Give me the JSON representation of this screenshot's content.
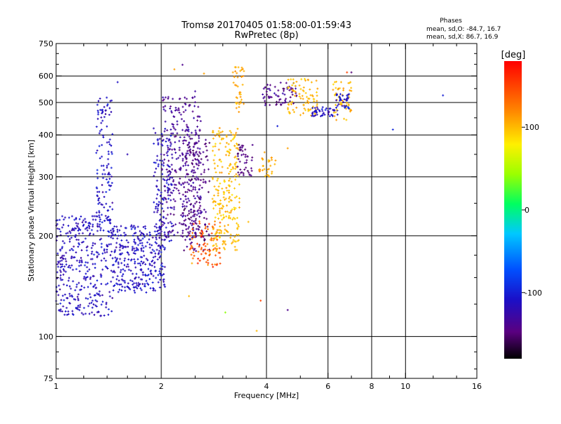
{
  "chart_data": {
    "type": "scatter",
    "title_line1": "Tromsø 20170405 01:58:00-01:59:43",
    "title_line2": "RwPretec (8p)",
    "stats": {
      "heading": "Phases",
      "line_o": "mean, sd,O: -84.7, 16.7",
      "line_x": "mean, sd,X:  86.7, 16.9"
    },
    "xlabel": "Frequency [MHz]",
    "ylabel": "Stationary phase Virtual Height [km]",
    "x_scale": "log",
    "y_scale": "log",
    "xlim": [
      1,
      16
    ],
    "ylim": [
      75,
      750
    ],
    "x_ticks": [
      1,
      2,
      4,
      6,
      8,
      10,
      16
    ],
    "x_tick_labels": [
      "1",
      "2",
      "4",
      "6",
      "8",
      "10",
      "16"
    ],
    "y_ticks": [
      75,
      100,
      200,
      300,
      400,
      500,
      600,
      750
    ],
    "y_tick_labels": [
      "75",
      "100",
      "200",
      "300",
      "400",
      "500",
      "600",
      "750"
    ],
    "x_minor_ticks": [
      1.2,
      1.4,
      1.6,
      1.8,
      2.5,
      3,
      3.5,
      5,
      7,
      9,
      12,
      14
    ],
    "y_minor_ticks": [
      80,
      90,
      125,
      150,
      175,
      250,
      350,
      450,
      550,
      650,
      700
    ],
    "grid_x": [
      2,
      4,
      6,
      8,
      10
    ],
    "grid_y": [
      100,
      200,
      300,
      400,
      500,
      600
    ],
    "grid": true,
    "colorbar": {
      "label": "[deg]",
      "min": -180,
      "max": 180,
      "ticks": [
        100,
        0,
        -100
      ],
      "tick_labels": [
        "100",
        "0",
        "-100"
      ],
      "colormap": "rainbow"
    },
    "clusters": [
      {
        "name": "",
        "x_range": [
          1.0,
          1.45
        ],
        "y_range": [
          115,
          230
        ],
        "phase": -115,
        "phase_sd": 15,
        "count": 360
      },
      {
        "name": "",
        "x_range": [
          1.3,
          1.45
        ],
        "y_range": [
          200,
          520
        ],
        "phase": -110,
        "phase_sd": 15,
        "count": 130
      },
      {
        "name": "",
        "x_range": [
          1.45,
          2.05
        ],
        "y_range": [
          135,
          215
        ],
        "phase": -112,
        "phase_sd": 15,
        "count": 320
      },
      {
        "name": "",
        "x_range": [
          1.9,
          2.15
        ],
        "y_range": [
          190,
          420
        ],
        "phase": -112,
        "phase_sd": 15,
        "count": 120
      },
      {
        "name": "",
        "x_range": [
          2.0,
          2.6
        ],
        "y_range": [
          195,
          520
        ],
        "phase": -135,
        "phase_sd": 12,
        "count": 320
      },
      {
        "name": "",
        "x_range": [
          2.3,
          2.75
        ],
        "y_range": [
          180,
          400
        ],
        "phase": -145,
        "phase_sd": 14,
        "count": 150
      },
      {
        "name": "",
        "x_range": [
          2.4,
          2.95
        ],
        "y_range": [
          160,
          225
        ],
        "phase": 140,
        "phase_sd": 25,
        "count": 90
      },
      {
        "name": "",
        "x_range": [
          2.8,
          3.35
        ],
        "y_range": [
          180,
          420
        ],
        "phase": 100,
        "phase_sd": 12,
        "count": 240
      },
      {
        "name": "",
        "x_range": [
          3.2,
          3.45
        ],
        "y_range": [
          460,
          640
        ],
        "phase": 108,
        "phase_sd": 10,
        "count": 40
      },
      {
        "name": "",
        "x_range": [
          3.3,
          3.65
        ],
        "y_range": [
          300,
          375
        ],
        "phase": -145,
        "phase_sd": 12,
        "count": 45
      },
      {
        "name": "",
        "x_range": [
          3.8,
          4.3
        ],
        "y_range": [
          300,
          345
        ],
        "phase": 105,
        "phase_sd": 12,
        "count": 30
      },
      {
        "name": "",
        "x_range": [
          3.9,
          4.9
        ],
        "y_range": [
          490,
          575
        ],
        "phase": -140,
        "phase_sd": 15,
        "count": 70
      },
      {
        "name": "",
        "x_range": [
          4.6,
          5.6
        ],
        "y_range": [
          455,
          590
        ],
        "phase": 100,
        "phase_sd": 12,
        "count": 80
      },
      {
        "name": "",
        "x_range": [
          5.4,
          6.4
        ],
        "y_range": [
          455,
          485
        ],
        "phase": -115,
        "phase_sd": 15,
        "count": 50
      },
      {
        "name": "",
        "x_range": [
          6.2,
          7.0
        ],
        "y_range": [
          440,
          580
        ],
        "phase": 100,
        "phase_sd": 15,
        "count": 50
      },
      {
        "name": "",
        "x_range": [
          6.3,
          6.9
        ],
        "y_range": [
          480,
          530
        ],
        "phase": -110,
        "phase_sd": 15,
        "count": 35
      }
    ],
    "points": [
      {
        "x": 12.8,
        "y": 525,
        "phase": -100
      },
      {
        "x": 9.2,
        "y": 415,
        "phase": -95
      },
      {
        "x": 7.0,
        "y": 615,
        "phase": -150
      },
      {
        "x": 6.8,
        "y": 615,
        "phase": 150
      },
      {
        "x": 4.6,
        "y": 120,
        "phase": -140
      },
      {
        "x": 4.6,
        "y": 365,
        "phase": 110
      },
      {
        "x": 3.85,
        "y": 128,
        "phase": 150
      },
      {
        "x": 3.75,
        "y": 104,
        "phase": 100
      },
      {
        "x": 3.05,
        "y": 118,
        "phase": 40
      },
      {
        "x": 2.4,
        "y": 132,
        "phase": 100
      },
      {
        "x": 2.3,
        "y": 648,
        "phase": -140
      },
      {
        "x": 2.18,
        "y": 628,
        "phase": 110
      },
      {
        "x": 1.6,
        "y": 350,
        "phase": -120
      },
      {
        "x": 1.5,
        "y": 575,
        "phase": -110
      },
      {
        "x": 3.55,
        "y": 220,
        "phase": 100
      },
      {
        "x": 4.3,
        "y": 425,
        "phase": -100
      },
      {
        "x": 3.95,
        "y": 355,
        "phase": 110
      },
      {
        "x": 5.6,
        "y": 550,
        "phase": 110
      },
      {
        "x": 2.5,
        "y": 540,
        "phase": -130
      },
      {
        "x": 2.65,
        "y": 610,
        "phase": 110
      }
    ]
  }
}
